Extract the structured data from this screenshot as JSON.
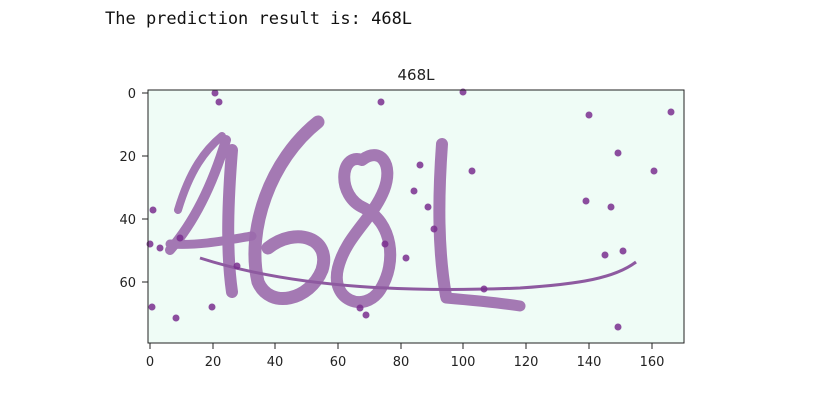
{
  "output": {
    "text": "The prediction result is: 468L"
  },
  "figure": {
    "title": "468L",
    "background_color": "#effcf6",
    "ink_color": "#9b6aac",
    "noise_color": "#7a2f8f"
  },
  "chart_data": {
    "type": "image",
    "title": "468L",
    "image_text": "468L",
    "xlim": [
      0,
      170
    ],
    "ylim": [
      80,
      0
    ],
    "x_ticks": [
      0,
      20,
      40,
      60,
      80,
      100,
      120,
      140,
      160
    ],
    "y_ticks": [
      0,
      20,
      40,
      60
    ],
    "x_tick_labels": [
      "0",
      "20",
      "40",
      "60",
      "80",
      "100",
      "120",
      "140",
      "160"
    ],
    "y_tick_labels": [
      "0",
      "20",
      "40",
      "60"
    ]
  }
}
